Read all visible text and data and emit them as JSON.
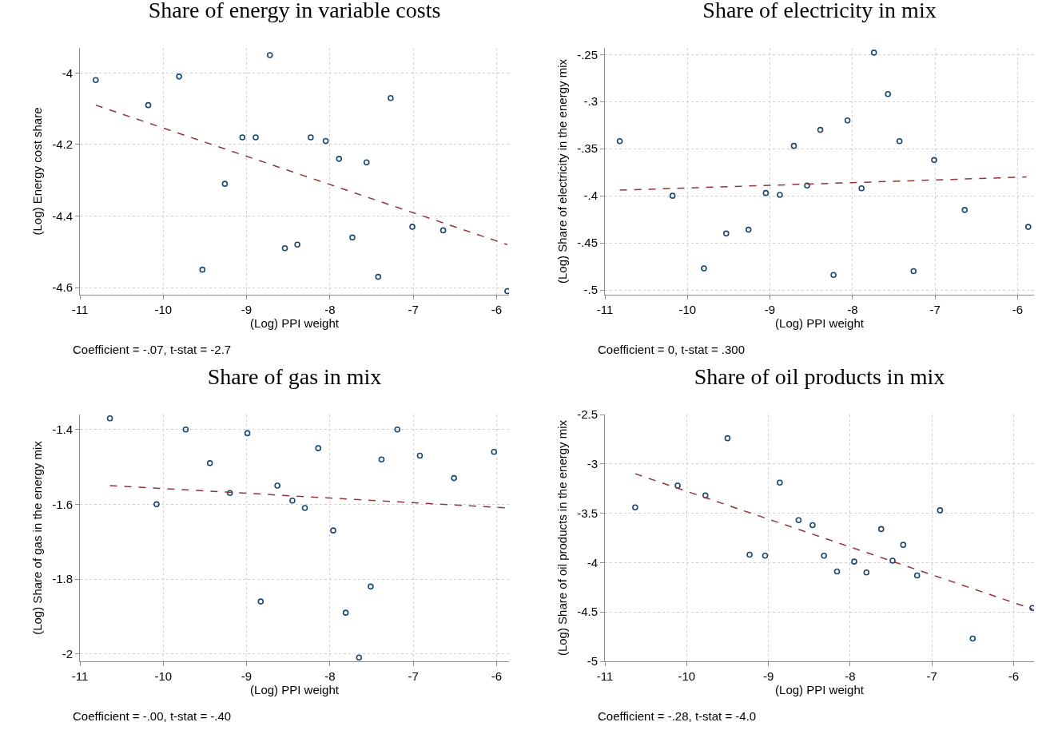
{
  "chart_data": [
    {
      "type": "scatter",
      "title": "Share of energy in variable costs",
      "xlabel": "(Log) PPI weight",
      "ylabel": "(Log) Energy cost share",
      "annotations": [
        "Coefficient = -.07, t-stat = -2.7"
      ],
      "xlim": [
        -11,
        -5.85
      ],
      "xticks": [
        -11,
        -10,
        -9,
        -8,
        -7,
        -6
      ],
      "ylim": [
        -4.62,
        -3.93
      ],
      "yticks": [
        -4,
        -4.2,
        -4.4,
        -4.6
      ],
      "grid": true,
      "series": [
        {
          "type": "scatter",
          "marker": "circle",
          "color": "#1a476f",
          "x": [
            -10.81,
            -10.18,
            -9.81,
            -8.72,
            -7.27,
            -9.05,
            -8.89,
            -8.23,
            -8.05,
            -7.89,
            -7.56,
            -9.26,
            -7.01,
            -6.64,
            -7.73,
            -8.54,
            -8.39,
            -9.53,
            -7.42,
            -5.87
          ],
          "values": [
            -4.02,
            -4.09,
            -4.01,
            -3.95,
            -4.07,
            -4.18,
            -4.18,
            -4.18,
            -4.19,
            -4.24,
            -4.25,
            -4.31,
            -4.43,
            -4.44,
            -4.46,
            -4.49,
            -4.48,
            -4.55,
            -4.57,
            -4.61
          ]
        },
        {
          "type": "line",
          "color": "#90353b",
          "line_style": "dashed",
          "x": [
            -10.81,
            -5.87
          ],
          "values": [
            -4.09,
            -4.48
          ]
        }
      ]
    },
    {
      "type": "scatter",
      "title": "Share of electricity in mix",
      "xlabel": "(Log) PPI weight",
      "ylabel": "(Log) Share of electricity in the energy mix",
      "annotations": [
        "Coefficient = 0, t-stat = .300"
      ],
      "xlim": [
        -11,
        -5.8
      ],
      "xticks": [
        -11,
        -10,
        -9,
        -8,
        -7,
        -6
      ],
      "ylim": [
        -0.505,
        -0.243
      ],
      "yticks": [
        {
          "value": -0.25,
          "label": "-.25"
        },
        {
          "value": -0.3,
          "label": "-.3"
        },
        {
          "value": -0.35,
          "label": "-.35"
        },
        {
          "value": -0.4,
          "label": "-.4"
        },
        {
          "value": -0.45,
          "label": "-.45"
        },
        {
          "value": -0.5,
          "label": "-.5"
        }
      ],
      "grid": true,
      "series": [
        {
          "type": "scatter",
          "marker": "circle",
          "color": "#1a476f",
          "x": [
            -10.82,
            -10.18,
            -9.8,
            -9.53,
            -9.26,
            -9.05,
            -8.88,
            -8.71,
            -8.55,
            -8.39,
            -8.23,
            -8.06,
            -7.89,
            -7.74,
            -7.57,
            -7.43,
            -7.26,
            -7.01,
            -6.64,
            -5.87
          ],
          "values": [
            -0.342,
            -0.4,
            -0.477,
            -0.44,
            -0.436,
            -0.397,
            -0.399,
            -0.347,
            -0.389,
            -0.33,
            -0.484,
            -0.32,
            -0.392,
            -0.248,
            -0.292,
            -0.342,
            -0.48,
            -0.362,
            -0.415,
            -0.433
          ]
        },
        {
          "type": "line",
          "color": "#90353b",
          "line_style": "dashed",
          "x": [
            -10.82,
            -5.89
          ],
          "values": [
            -0.394,
            -0.38
          ]
        }
      ]
    },
    {
      "type": "scatter",
      "title": "Share of gas in mix",
      "xlabel": "(Log) PPI weight",
      "ylabel": "(Log) Share of gas in the energy mix",
      "annotations": [
        "Coefficient = -.00, t-stat = -.40"
      ],
      "xlim": [
        -11,
        -5.85
      ],
      "xticks": [
        -11,
        -10,
        -9,
        -8,
        -7,
        -6
      ],
      "ylim": [
        -2.02,
        -1.36
      ],
      "yticks": [
        -1.4,
        -1.6,
        -1.8,
        -2
      ],
      "grid": true,
      "series": [
        {
          "type": "scatter",
          "marker": "circle",
          "color": "#1a476f",
          "x": [
            -10.64,
            -10.08,
            -9.73,
            -9.44,
            -9.2,
            -8.99,
            -8.83,
            -8.63,
            -8.45,
            -8.3,
            -8.14,
            -7.96,
            -7.81,
            -7.65,
            -7.51,
            -7.38,
            -7.19,
            -6.92,
            -6.51,
            -6.03
          ],
          "values": [
            -1.37,
            -1.6,
            -1.4,
            -1.49,
            -1.57,
            -1.41,
            -1.86,
            -1.55,
            -1.59,
            -1.61,
            -1.45,
            -1.67,
            -1.89,
            -2.01,
            -1.82,
            -1.48,
            -1.4,
            -1.47,
            -1.53,
            -1.46
          ]
        },
        {
          "type": "line",
          "color": "#90353b",
          "line_style": "dashed",
          "x": [
            -10.64,
            -5.87
          ],
          "values": [
            -1.55,
            -1.61
          ]
        }
      ]
    },
    {
      "type": "scatter",
      "title": "Share of oil products in mix",
      "xlabel": "(Log) PPI weight",
      "ylabel": "(Log) Share of oil products in the energy mix",
      "annotations": [
        "Coefficient = -.28, t-stat = -4.0"
      ],
      "xlim": [
        -11,
        -5.75
      ],
      "xticks": [
        -11,
        -10,
        -9,
        -8,
        -7,
        -6
      ],
      "ylim": [
        -5,
        -2.5
      ],
      "yticks": [
        -2.5,
        -3,
        -3.5,
        -4,
        -4.5,
        -5
      ],
      "grid": true,
      "series": [
        {
          "type": "scatter",
          "marker": "circle",
          "color": "#1a476f",
          "x": [
            -10.63,
            -10.11,
            -9.77,
            -9.5,
            -9.23,
            -9.04,
            -8.86,
            -8.63,
            -8.46,
            -8.32,
            -8.16,
            -7.95,
            -7.8,
            -7.62,
            -7.48,
            -7.35,
            -7.18,
            -6.9,
            -6.5,
            -5.77
          ],
          "values": [
            -3.44,
            -3.22,
            -3.32,
            -2.74,
            -3.92,
            -3.93,
            -3.19,
            -3.57,
            -3.62,
            -3.93,
            -4.09,
            -3.99,
            -4.1,
            -3.66,
            -3.98,
            -3.82,
            -4.13,
            -3.47,
            -4.77,
            -4.46
          ]
        },
        {
          "type": "line",
          "color": "#90353b",
          "line_style": "dashed",
          "x": [
            -10.63,
            -5.77
          ],
          "values": [
            -3.1,
            -4.47
          ]
        }
      ]
    }
  ]
}
